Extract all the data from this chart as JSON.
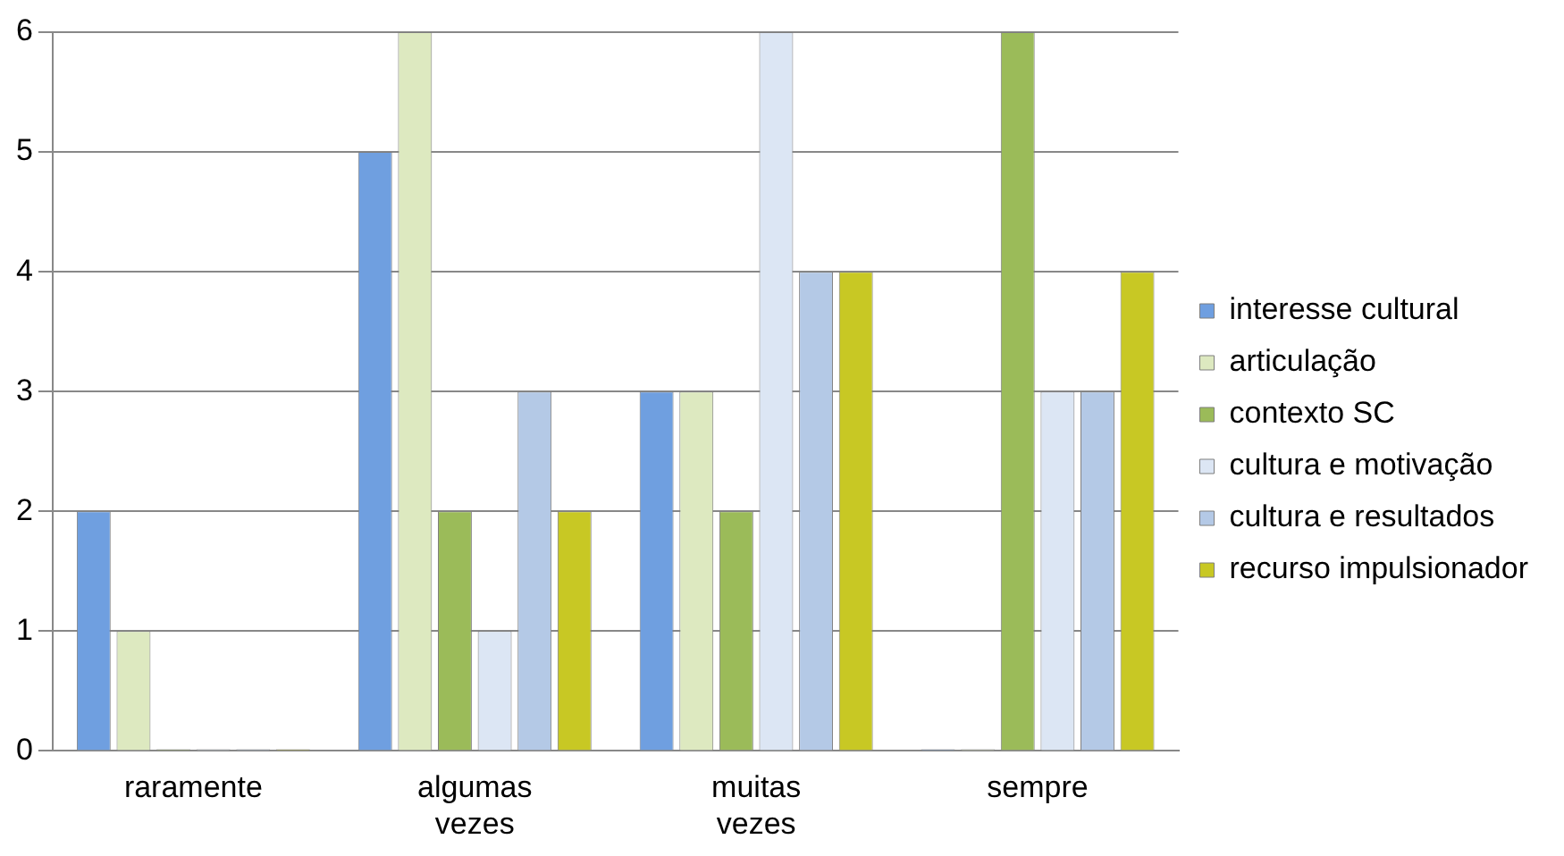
{
  "chart_data": {
    "type": "bar",
    "categories": [
      "raramente",
      "algumas vezes",
      "muitas vezes",
      "sempre"
    ],
    "series": [
      {
        "name": "interesse cultural",
        "color": "#6f9fe0",
        "values": [
          2,
          5,
          3,
          0
        ]
      },
      {
        "name": "articulação",
        "color": "#dde9c0",
        "values": [
          1,
          6,
          3,
          0
        ]
      },
      {
        "name": "contexto SC",
        "color": "#9bbb59",
        "values": [
          0,
          2,
          2,
          6
        ]
      },
      {
        "name": "cultura e motivação",
        "color": "#dce6f4",
        "values": [
          0,
          1,
          6,
          3
        ]
      },
      {
        "name": "cultura e resultados",
        "color": "#b4c9e6",
        "values": [
          0,
          3,
          4,
          3
        ]
      },
      {
        "name": "recurso impulsionador",
        "color": "#c8c824",
        "values": [
          0,
          2,
          4,
          4
        ]
      }
    ],
    "ylim": [
      0,
      6
    ],
    "yticks": [
      0,
      1,
      2,
      3,
      4,
      5,
      6
    ],
    "grid": "y",
    "legend": "right"
  }
}
